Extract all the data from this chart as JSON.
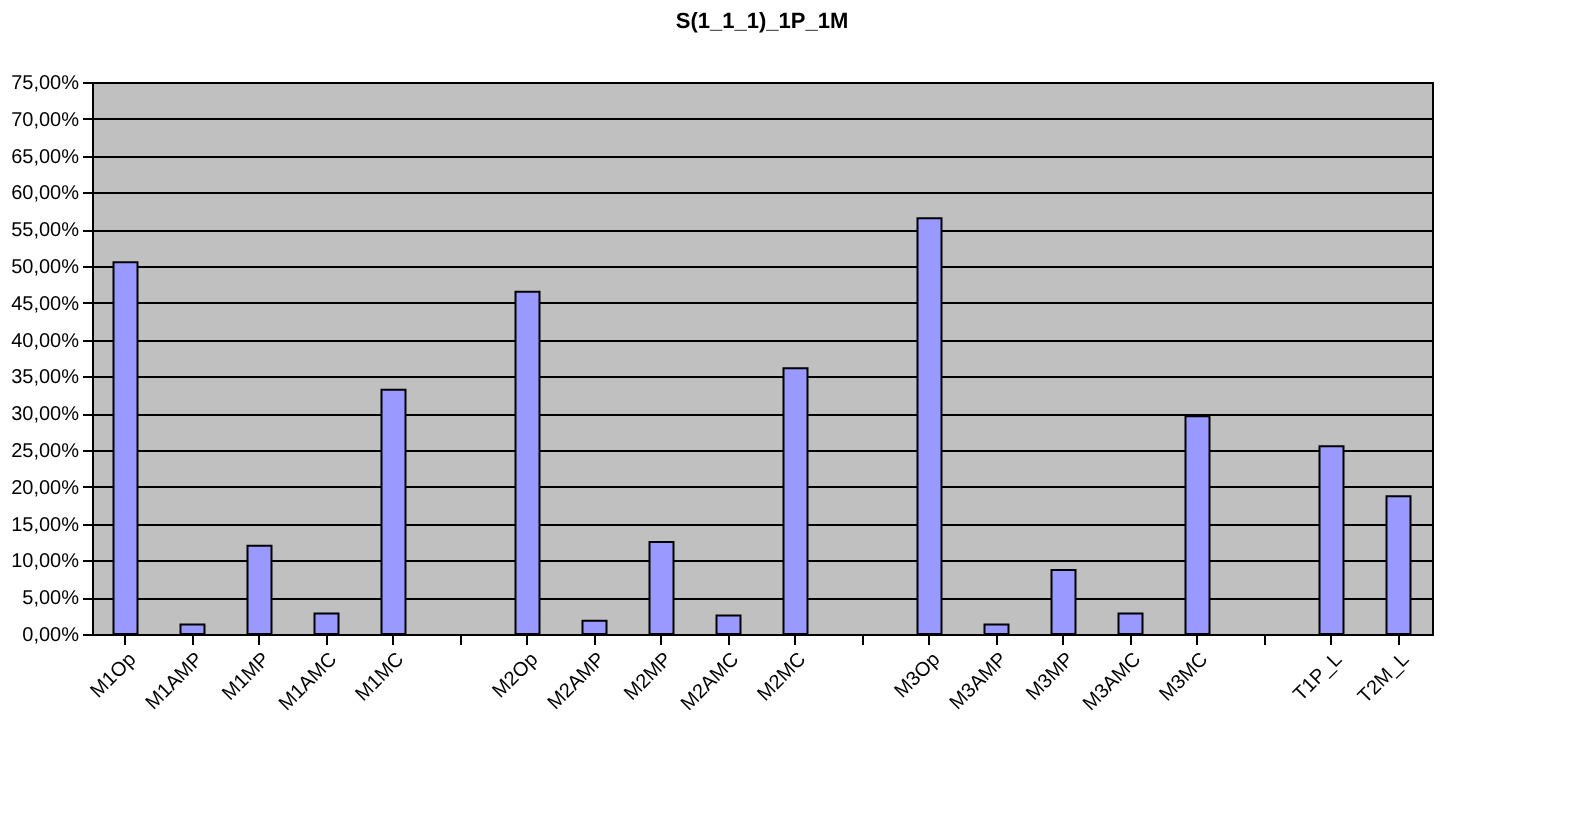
{
  "chart_data": {
    "type": "bar",
    "title": "S(1_1_1)_1P_1M",
    "categories": [
      "M1Op",
      "M1AMP",
      "M1MP",
      "M1AMC",
      "M1MC",
      null,
      "M2Op",
      "M2AMP",
      "M2MP",
      "M2AMC",
      "M2MC",
      null,
      "M3Op",
      "M3AMP",
      "M3MP",
      "M3AMC",
      "M3MC",
      null,
      "T1P_L",
      "T2M_L"
    ],
    "values": [
      50.5,
      1.3,
      12.0,
      2.8,
      33.2,
      null,
      46.5,
      1.8,
      12.5,
      2.5,
      36.1,
      null,
      56.5,
      1.3,
      8.7,
      2.8,
      29.6,
      null,
      25.5,
      18.7
    ],
    "color": "#9999ff",
    "ylim": [
      0,
      75
    ],
    "yticks": [
      {
        "value": 0,
        "label": "0,00%"
      },
      {
        "value": 5,
        "label": "5,00%"
      },
      {
        "value": 10,
        "label": "10,00%"
      },
      {
        "value": 15,
        "label": "15,00%"
      },
      {
        "value": 20,
        "label": "20,00%"
      },
      {
        "value": 25,
        "label": "25,00%"
      },
      {
        "value": 30,
        "label": "30,00%"
      },
      {
        "value": 35,
        "label": "35,00%"
      },
      {
        "value": 40,
        "label": "40,00%"
      },
      {
        "value": 45,
        "label": "45,00%"
      },
      {
        "value": 50,
        "label": "50,00%"
      },
      {
        "value": 55,
        "label": "55,00%"
      },
      {
        "value": 60,
        "label": "60,00%"
      },
      {
        "value": 65,
        "label": "65,00%"
      },
      {
        "value": 70,
        "label": "70,00%"
      },
      {
        "value": 75,
        "label": "75,00%"
      }
    ],
    "grid": "y"
  }
}
